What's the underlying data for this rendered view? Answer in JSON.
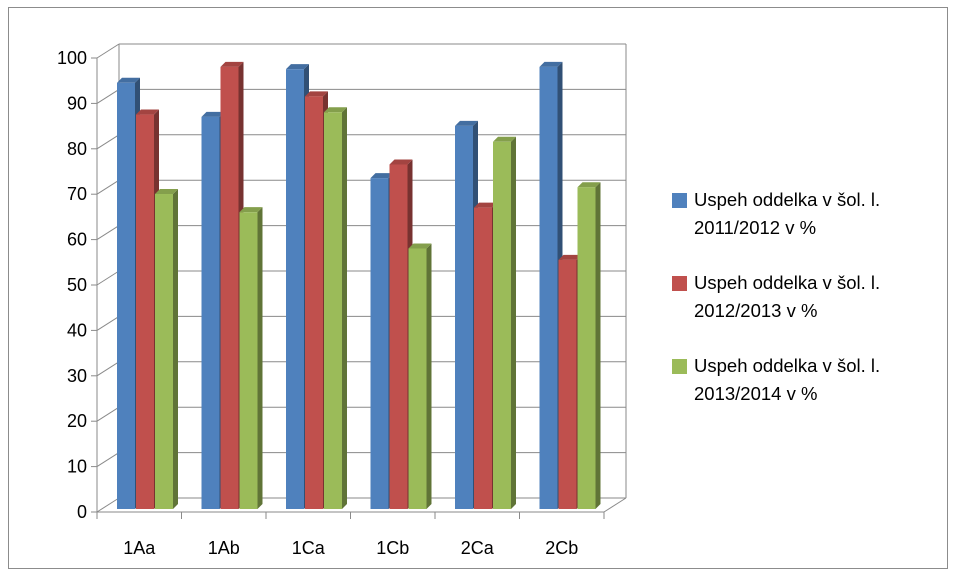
{
  "chart_data": {
    "type": "bar",
    "title": "",
    "xlabel": "",
    "ylabel": "",
    "ylim": [
      0,
      100
    ],
    "yticks": [
      "0",
      "10",
      "20",
      "30",
      "40",
      "50",
      "60",
      "70",
      "80",
      "90",
      "100"
    ],
    "categories": [
      "1Aa",
      "1Ab",
      "1Ca",
      "1Cb",
      "2Ca",
      "2Cb"
    ],
    "series": [
      {
        "name": "Uspeh oddelka  v šol. l. 2011/2012 v %",
        "values": [
          93,
          85.5,
          96,
          72,
          83.5,
          96.5
        ],
        "color": "#4f81bd"
      },
      {
        "name": "Uspeh oddelka  v šol. l. 2012/2013 v %",
        "values": [
          86,
          96.5,
          90,
          75,
          65.5,
          54
        ],
        "color": "#c0504d"
      },
      {
        "name": "Uspeh oddelka  v šol. l. 2013/2014 v %",
        "values": [
          68.5,
          64.5,
          86.5,
          56.5,
          80,
          70
        ],
        "color": "#9bbb59"
      }
    ],
    "grid": true,
    "legend_position": "right"
  }
}
